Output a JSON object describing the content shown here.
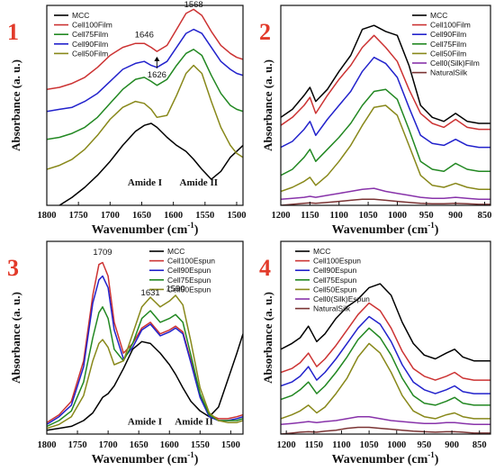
{
  "chart_data": [
    {
      "type": "line",
      "panel_label": "1",
      "xlabel": "Wavenumber (cm-1)",
      "ylabel": "Absorbance (a. u.)",
      "xlim": [
        1800,
        1490
      ],
      "ylim": [
        0,
        1
      ],
      "x_ticks": [
        1800,
        1750,
        1700,
        1650,
        1600,
        1550,
        1500
      ],
      "legend_position": "top-left",
      "annotations": [
        {
          "text": "1646",
          "x": 1646,
          "y": 0.84
        },
        {
          "text": "1568",
          "x": 1568,
          "y": 0.99
        },
        {
          "text": "1626",
          "x": 1626,
          "y": 0.64
        },
        {
          "text": "Amide I",
          "x": 1645,
          "y": 0.1
        },
        {
          "text": "Amide II",
          "x": 1560,
          "y": 0.1
        }
      ],
      "x": [
        1800,
        1780,
        1760,
        1740,
        1720,
        1700,
        1680,
        1660,
        1646,
        1635,
        1626,
        1610,
        1595,
        1580,
        1568,
        1555,
        1540,
        1525,
        1510,
        1500,
        1490
      ],
      "series": [
        {
          "name": "MCC",
          "color": "#000000",
          "values": [
            -0.05,
            0.0,
            0.04,
            0.09,
            0.15,
            0.22,
            0.3,
            0.37,
            0.4,
            0.41,
            0.39,
            0.34,
            0.3,
            0.27,
            0.23,
            0.18,
            0.13,
            0.17,
            0.24,
            0.27,
            0.3
          ]
        },
        {
          "name": "Cell100Film",
          "color": "#cc3333",
          "values": [
            0.58,
            0.59,
            0.61,
            0.64,
            0.69,
            0.75,
            0.79,
            0.81,
            0.81,
            0.79,
            0.77,
            0.8,
            0.88,
            0.96,
            0.98,
            0.95,
            0.87,
            0.8,
            0.76,
            0.74,
            0.73
          ]
        },
        {
          "name": "Cell75Film",
          "color": "#228822",
          "values": [
            0.33,
            0.34,
            0.36,
            0.39,
            0.44,
            0.51,
            0.58,
            0.63,
            0.64,
            0.62,
            0.6,
            0.63,
            0.7,
            0.76,
            0.78,
            0.75,
            0.65,
            0.56,
            0.5,
            0.48,
            0.47
          ]
        },
        {
          "name": "Cell90Film",
          "color": "#2222cc",
          "values": [
            0.47,
            0.48,
            0.49,
            0.52,
            0.56,
            0.62,
            0.68,
            0.71,
            0.72,
            0.7,
            0.69,
            0.72,
            0.79,
            0.86,
            0.88,
            0.86,
            0.79,
            0.72,
            0.68,
            0.66,
            0.65
          ]
        },
        {
          "name": "Cell50Film",
          "color": "#88881a",
          "values": [
            0.18,
            0.2,
            0.23,
            0.28,
            0.35,
            0.43,
            0.49,
            0.52,
            0.51,
            0.48,
            0.44,
            0.45,
            0.55,
            0.66,
            0.7,
            0.66,
            0.52,
            0.39,
            0.3,
            0.26,
            0.24
          ]
        }
      ]
    },
    {
      "type": "line",
      "panel_label": "2",
      "xlabel": "Wavenumber (cm-1)",
      "ylabel": "Absorbance (a. u.)",
      "xlim": [
        1200,
        840
      ],
      "ylim": [
        0,
        1
      ],
      "x_ticks": [
        1200,
        1150,
        1100,
        1050,
        1000,
        950,
        900,
        850
      ],
      "legend_position": "top-right",
      "x": [
        1200,
        1180,
        1160,
        1150,
        1140,
        1120,
        1100,
        1080,
        1060,
        1040,
        1020,
        1000,
        980,
        960,
        940,
        920,
        900,
        880,
        860,
        840
      ],
      "series": [
        {
          "name": "MCC",
          "color": "#000000",
          "values": [
            0.44,
            0.48,
            0.55,
            0.59,
            0.52,
            0.58,
            0.67,
            0.75,
            0.88,
            0.9,
            0.87,
            0.85,
            0.7,
            0.5,
            0.44,
            0.42,
            0.46,
            0.42,
            0.41,
            0.41
          ]
        },
        {
          "name": "Cell100Film",
          "color": "#cc3333",
          "values": [
            0.4,
            0.44,
            0.5,
            0.54,
            0.46,
            0.55,
            0.63,
            0.7,
            0.79,
            0.85,
            0.79,
            0.72,
            0.58,
            0.46,
            0.41,
            0.39,
            0.43,
            0.39,
            0.38,
            0.38
          ]
        },
        {
          "name": "Cell90Film",
          "color": "#2222cc",
          "values": [
            0.29,
            0.32,
            0.38,
            0.42,
            0.35,
            0.43,
            0.5,
            0.57,
            0.67,
            0.74,
            0.71,
            0.64,
            0.49,
            0.35,
            0.31,
            0.3,
            0.33,
            0.3,
            0.29,
            0.29
          ]
        },
        {
          "name": "Cell75Film",
          "color": "#228822",
          "values": [
            0.15,
            0.18,
            0.24,
            0.28,
            0.22,
            0.28,
            0.34,
            0.41,
            0.5,
            0.57,
            0.58,
            0.53,
            0.38,
            0.22,
            0.18,
            0.17,
            0.21,
            0.18,
            0.17,
            0.17
          ]
        },
        {
          "name": "Cell50Film",
          "color": "#88881a",
          "values": [
            0.07,
            0.09,
            0.12,
            0.14,
            0.1,
            0.15,
            0.22,
            0.3,
            0.4,
            0.49,
            0.5,
            0.45,
            0.3,
            0.15,
            0.1,
            0.09,
            0.11,
            0.09,
            0.08,
            0.08
          ]
        },
        {
          "name": "Cell0(Silk)Film",
          "color": "#8833aa",
          "values": [
            0.03,
            0.035,
            0.04,
            0.045,
            0.04,
            0.05,
            0.06,
            0.07,
            0.08,
            0.085,
            0.07,
            0.06,
            0.05,
            0.04,
            0.035,
            0.035,
            0.04,
            0.035,
            0.03,
            0.03
          ]
        },
        {
          "name": "NaturalSilk",
          "color": "#7a3333",
          "values": [
            0.0,
            0.005,
            0.01,
            0.012,
            0.01,
            0.015,
            0.02,
            0.025,
            0.03,
            0.03,
            0.025,
            0.02,
            0.015,
            0.01,
            0.008,
            0.008,
            0.01,
            0.008,
            0.005,
            0.005
          ]
        }
      ]
    },
    {
      "type": "line",
      "panel_label": "3",
      "xlabel": "Wavenumber (cm-1)",
      "ylabel": "Absorbance (a. u.)",
      "xlim": [
        1800,
        1480
      ],
      "ylim": [
        0,
        1
      ],
      "x_ticks": [
        1800,
        1750,
        1700,
        1650,
        1600,
        1550,
        1500
      ],
      "legend_position": "top-right",
      "annotations": [
        {
          "text": "1709",
          "x": 1709,
          "y": 0.93
        },
        {
          "text": "1631",
          "x": 1631,
          "y": 0.72
        },
        {
          "text": "1590",
          "x": 1590,
          "y": 0.74
        },
        {
          "text": "Amide I",
          "x": 1640,
          "y": 0.05
        },
        {
          "text": "Amide II",
          "x": 1560,
          "y": 0.05
        }
      ],
      "x": [
        1800,
        1780,
        1760,
        1740,
        1725,
        1715,
        1709,
        1700,
        1690,
        1675,
        1660,
        1645,
        1631,
        1615,
        1600,
        1590,
        1578,
        1565,
        1550,
        1535,
        1520,
        1505,
        1490,
        1480
      ],
      "series": [
        {
          "name": "MCC",
          "color": "#000000",
          "values": [
            0.02,
            0.03,
            0.04,
            0.07,
            0.11,
            0.16,
            0.19,
            0.21,
            0.25,
            0.34,
            0.44,
            0.48,
            0.47,
            0.42,
            0.36,
            0.31,
            0.24,
            0.17,
            0.12,
            0.09,
            0.14,
            0.28,
            0.42,
            0.52
          ]
        },
        {
          "name": "Cell100Espun",
          "color": "#cc3333",
          "values": [
            0.06,
            0.1,
            0.17,
            0.38,
            0.72,
            0.88,
            0.89,
            0.82,
            0.58,
            0.42,
            0.47,
            0.55,
            0.58,
            0.52,
            0.54,
            0.56,
            0.53,
            0.38,
            0.2,
            0.1,
            0.08,
            0.08,
            0.09,
            0.1
          ]
        },
        {
          "name": "Cell90Espun",
          "color": "#2222cc",
          "values": [
            0.05,
            0.09,
            0.15,
            0.35,
            0.68,
            0.8,
            0.82,
            0.76,
            0.54,
            0.39,
            0.45,
            0.54,
            0.57,
            0.51,
            0.53,
            0.55,
            0.52,
            0.37,
            0.19,
            0.09,
            0.07,
            0.07,
            0.08,
            0.09
          ]
        },
        {
          "name": "Cell75Espun",
          "color": "#228822",
          "values": [
            0.04,
            0.07,
            0.12,
            0.27,
            0.5,
            0.63,
            0.66,
            0.6,
            0.44,
            0.38,
            0.47,
            0.6,
            0.64,
            0.58,
            0.6,
            0.62,
            0.58,
            0.41,
            0.21,
            0.1,
            0.07,
            0.07,
            0.07,
            0.08
          ]
        },
        {
          "name": "Cell50Espun",
          "color": "#88881a",
          "values": [
            0.03,
            0.05,
            0.09,
            0.2,
            0.38,
            0.47,
            0.49,
            0.45,
            0.36,
            0.38,
            0.52,
            0.66,
            0.71,
            0.66,
            0.69,
            0.72,
            0.67,
            0.48,
            0.24,
            0.11,
            0.07,
            0.06,
            0.06,
            0.07
          ]
        }
      ]
    },
    {
      "type": "line",
      "panel_label": "4",
      "xlabel": "Wavenumber (cm-1)",
      "ylabel": "Absorbance (a. u.)",
      "xlim": [
        1210,
        830
      ],
      "ylim": [
        0,
        1
      ],
      "x_ticks": [
        1200,
        1150,
        1100,
        1050,
        1000,
        950,
        900,
        850
      ],
      "legend_position": "top-left",
      "x": [
        1210,
        1190,
        1175,
        1160,
        1145,
        1130,
        1110,
        1090,
        1070,
        1050,
        1030,
        1010,
        990,
        970,
        950,
        930,
        910,
        895,
        880,
        860,
        840,
        830
      ],
      "series": [
        {
          "name": "MCC",
          "color": "#000000",
          "values": [
            0.44,
            0.47,
            0.5,
            0.56,
            0.48,
            0.52,
            0.6,
            0.66,
            0.7,
            0.76,
            0.78,
            0.72,
            0.58,
            0.47,
            0.41,
            0.39,
            0.42,
            0.44,
            0.4,
            0.38,
            0.38,
            0.38
          ]
        },
        {
          "name": "Cell100Espun",
          "color": "#cc3333",
          "values": [
            0.32,
            0.34,
            0.37,
            0.42,
            0.35,
            0.39,
            0.46,
            0.54,
            0.62,
            0.68,
            0.64,
            0.55,
            0.43,
            0.34,
            0.3,
            0.28,
            0.3,
            0.32,
            0.29,
            0.28,
            0.28,
            0.28
          ]
        },
        {
          "name": "Cell90Espun",
          "color": "#2222cc",
          "values": [
            0.25,
            0.27,
            0.3,
            0.35,
            0.28,
            0.32,
            0.39,
            0.47,
            0.55,
            0.61,
            0.57,
            0.48,
            0.36,
            0.27,
            0.23,
            0.21,
            0.23,
            0.25,
            0.22,
            0.21,
            0.21,
            0.21
          ]
        },
        {
          "name": "Cell75Espun",
          "color": "#228822",
          "values": [
            0.18,
            0.2,
            0.23,
            0.27,
            0.21,
            0.25,
            0.32,
            0.4,
            0.49,
            0.55,
            0.5,
            0.41,
            0.29,
            0.2,
            0.16,
            0.15,
            0.17,
            0.19,
            0.16,
            0.15,
            0.15,
            0.15
          ]
        },
        {
          "name": "Cell50Espun",
          "color": "#88881a",
          "values": [
            0.08,
            0.1,
            0.12,
            0.15,
            0.11,
            0.14,
            0.21,
            0.29,
            0.4,
            0.47,
            0.42,
            0.32,
            0.2,
            0.12,
            0.09,
            0.08,
            0.1,
            0.11,
            0.09,
            0.08,
            0.08,
            0.08
          ]
        },
        {
          "name": "Cell0(Silk)Espun",
          "color": "#8833aa",
          "values": [
            0.05,
            0.055,
            0.06,
            0.065,
            0.06,
            0.065,
            0.07,
            0.08,
            0.09,
            0.09,
            0.08,
            0.07,
            0.065,
            0.06,
            0.055,
            0.055,
            0.06,
            0.06,
            0.055,
            0.05,
            0.05,
            0.05
          ]
        },
        {
          "name": "NaturalSilk",
          "color": "#7a3333",
          "values": [
            0.0,
            0.005,
            0.01,
            0.012,
            0.01,
            0.015,
            0.02,
            0.03,
            0.035,
            0.035,
            0.03,
            0.025,
            0.02,
            0.015,
            0.012,
            0.01,
            0.012,
            0.012,
            0.01,
            0.005,
            0.005,
            0.005
          ]
        }
      ]
    }
  ]
}
